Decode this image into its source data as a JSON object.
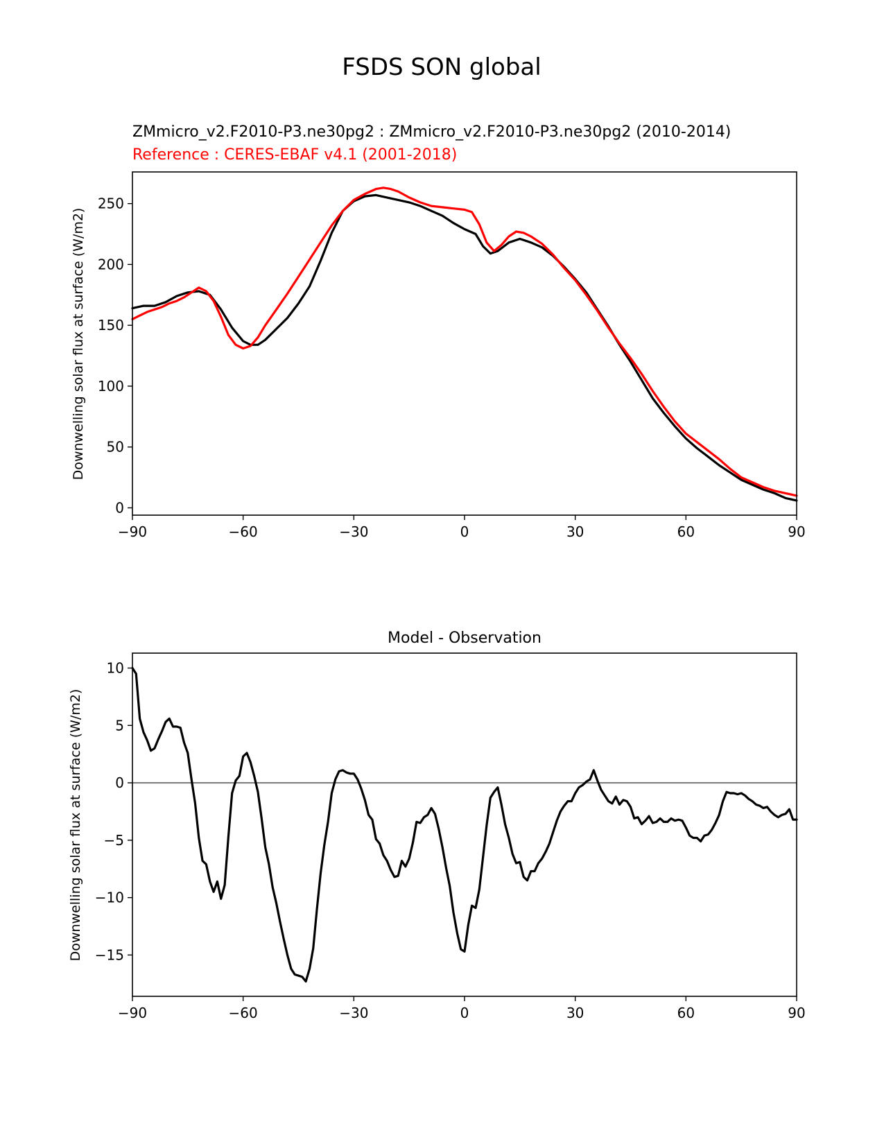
{
  "figure": {
    "title": "FSDS SON global"
  },
  "chart_data": [
    {
      "type": "line",
      "panel": "top",
      "title_lines": [
        {
          "text": "ZMmicro_v2.F2010-P3.ne30pg2 : ZMmicro_v2.F2010-P3.ne30pg2 (2010-2014)",
          "color": "#000000"
        },
        {
          "text": "Reference : CERES-EBAF v4.1 (2001-2018)",
          "color": "#ff0000"
        }
      ],
      "xlabel": "",
      "ylabel": "Downwelling solar flux at surface (W/m2)",
      "xlim": [
        -90,
        90
      ],
      "ylim": [
        -6,
        276
      ],
      "xticks": [
        -90,
        -60,
        -30,
        0,
        30,
        60,
        90
      ],
      "xtick_labels": [
        "−90",
        "−60",
        "−30",
        "0",
        "30",
        "60",
        "90"
      ],
      "yticks": [
        0,
        50,
        100,
        150,
        200,
        250
      ],
      "ytick_labels": [
        "0",
        "50",
        "100",
        "150",
        "200",
        "250"
      ],
      "grid": false,
      "series": [
        {
          "color": "#000000",
          "x": [
            -90,
            -87,
            -84,
            -81,
            -78,
            -75,
            -72,
            -69,
            -66,
            -63,
            -60,
            -58,
            -56,
            -54,
            -51,
            -48,
            -45,
            -42,
            -39,
            -36,
            -33,
            -30,
            -27,
            -24,
            -21,
            -18,
            -15,
            -12,
            -9,
            -6,
            -3,
            0,
            0,
            3,
            5,
            7,
            9,
            12,
            15,
            18,
            21,
            24,
            27,
            30,
            33,
            36,
            39,
            42,
            45,
            48,
            51,
            54,
            57,
            60,
            63,
            66,
            69,
            72,
            75,
            78,
            81,
            84,
            87,
            90
          ],
          "values": [
            164,
            166,
            166,
            169,
            174,
            177,
            178,
            175,
            163,
            148,
            137,
            134,
            134,
            138,
            147,
            156,
            168,
            182,
            203,
            226,
            244,
            252,
            256,
            257,
            255,
            253,
            251,
            248,
            244,
            240,
            234,
            229,
            229,
            225,
            215,
            209,
            211,
            218,
            221,
            218,
            214,
            207,
            198,
            188,
            177,
            163,
            149,
            134,
            120,
            105,
            90,
            78,
            67,
            57,
            49,
            42,
            35,
            29,
            23,
            19,
            15,
            12,
            8,
            6
          ]
        },
        {
          "color": "#ff0000",
          "x": [
            -90,
            -88,
            -86,
            -84,
            -82,
            -80,
            -78,
            -76,
            -74,
            -72,
            -70,
            -68,
            -66,
            -64,
            -62,
            -60,
            -58,
            -56,
            -54,
            -51,
            -48,
            -45,
            -42,
            -39,
            -36,
            -33,
            -30,
            -27,
            -24,
            -22,
            -20,
            -18,
            -15,
            -12,
            -9,
            -6,
            -3,
            0,
            2,
            4,
            6,
            8,
            10,
            12,
            14,
            16,
            18,
            21,
            24,
            27,
            30,
            33,
            36,
            39,
            42,
            45,
            48,
            51,
            54,
            57,
            60,
            63,
            66,
            69,
            72,
            75,
            78,
            81,
            84,
            87,
            90
          ],
          "values": [
            155,
            158,
            161,
            163,
            165,
            168,
            170,
            173,
            177,
            181,
            178,
            170,
            157,
            142,
            134,
            131,
            133,
            140,
            150,
            163,
            176,
            190,
            204,
            218,
            232,
            244,
            253,
            258,
            262,
            263,
            262,
            260,
            255,
            251,
            248,
            247,
            246,
            245,
            243,
            233,
            218,
            211,
            216,
            223,
            227,
            226,
            223,
            217,
            208,
            197,
            187,
            175,
            162,
            148,
            135,
            123,
            110,
            96,
            83,
            71,
            61,
            54,
            47,
            40,
            32,
            25,
            21,
            17,
            14,
            12,
            10
          ]
        }
      ]
    },
    {
      "type": "line",
      "panel": "bottom",
      "title": "Model - Observation",
      "xlabel": "",
      "ylabel": "Downwelling solar flux at surface (W/m2)",
      "xlim": [
        -90,
        90
      ],
      "ylim": [
        -18.6,
        11.3
      ],
      "xticks": [
        -90,
        -60,
        -30,
        0,
        30,
        60,
        90
      ],
      "xtick_labels": [
        "−90",
        "−60",
        "−30",
        "0",
        "30",
        "60",
        "90"
      ],
      "yticks": [
        -15,
        -10,
        -5,
        0,
        5,
        10
      ],
      "ytick_labels": [
        "−15",
        "−10",
        "−5",
        "0",
        "5",
        "10"
      ],
      "grid": false,
      "zero_line_color": "#808080",
      "series": [
        {
          "color": "#000000",
          "x": [
            -90,
            -89,
            -88,
            -87,
            -86,
            -85,
            -84,
            -83,
            -82,
            -81,
            -80,
            -79,
            -78,
            -77,
            -76,
            -75,
            -74,
            -73,
            -72,
            -71,
            -70,
            -69,
            -68,
            -67,
            -66,
            -65,
            -64,
            -63,
            -62,
            -61,
            -60,
            -59,
            -58,
            -57,
            -56,
            -55,
            -54,
            -53,
            -52,
            -51,
            -50,
            -49,
            -48,
            -47,
            -46,
            -45,
            -44,
            -43,
            -42,
            -41,
            -40,
            -39,
            -38,
            -37,
            -36,
            -35,
            -34,
            -33,
            -32,
            -31,
            -30,
            -29,
            -28,
            -27,
            -26,
            -25,
            -24,
            -23,
            -22,
            -21,
            -20,
            -19,
            -18,
            -17,
            -16,
            -15,
            -14,
            -13,
            -12,
            -11,
            -10,
            -9,
            -8,
            -7,
            -6,
            -5,
            -4,
            -3,
            -2,
            -1,
            0,
            1,
            2,
            3,
            4,
            5,
            6,
            7,
            8,
            9,
            10,
            11,
            12,
            13,
            14,
            15,
            16,
            17,
            18,
            19,
            20,
            21,
            22,
            23,
            24,
            25,
            26,
            27,
            28,
            29,
            30,
            31,
            32,
            33,
            34,
            35,
            36,
            37,
            38,
            39,
            40,
            41,
            42,
            43,
            44,
            45,
            46,
            47,
            48,
            49,
            50,
            51,
            52,
            53,
            54,
            55,
            56,
            57,
            58,
            59,
            60,
            61,
            62,
            63,
            64,
            65,
            66,
            67,
            68,
            69,
            70,
            71,
            72,
            73,
            74,
            75,
            76,
            77,
            78,
            79,
            80,
            81,
            82,
            83,
            84,
            85,
            86,
            87,
            88,
            89,
            90
          ],
          "values": [
            10,
            9.5,
            5.6,
            4.4,
            3.7,
            2.8,
            3.0,
            3.8,
            4.5,
            5.3,
            5.6,
            4.9,
            4.9,
            4.8,
            3.5,
            2.6,
            0.3,
            -1.8,
            -4.8,
            -6.8,
            -7.1,
            -8.6,
            -9.5,
            -8.6,
            -10.1,
            -8.9,
            -4.7,
            -0.9,
            0.2,
            0.6,
            2.3,
            2.6,
            1.8,
            0.6,
            -0.8,
            -3.1,
            -5.6,
            -7.1,
            -9.1,
            -10.5,
            -12.1,
            -13.6,
            -15.0,
            -16.2,
            -16.7,
            -16.8,
            -16.9,
            -17.3,
            -16.2,
            -14.4,
            -11.0,
            -7.9,
            -5.4,
            -3.4,
            -0.9,
            0.3,
            1.0,
            1.1,
            0.9,
            0.8,
            0.8,
            0.3,
            -0.5,
            -1.5,
            -2.8,
            -3.2,
            -4.9,
            -5.3,
            -6.3,
            -6.8,
            -7.6,
            -8.2,
            -8.1,
            -6.8,
            -7.3,
            -6.6,
            -5.2,
            -3.4,
            -3.5,
            -3.0,
            -2.8,
            -2.2,
            -2.7,
            -4.0,
            -5.6,
            -7.4,
            -9.0,
            -11.3,
            -13.1,
            -14.5,
            -14.7,
            -12.4,
            -10.7,
            -10.9,
            -9.3,
            -6.5,
            -3.7,
            -1.3,
            -0.8,
            -0.4,
            -1.9,
            -3.6,
            -4.8,
            -6.2,
            -7.0,
            -6.9,
            -8.2,
            -8.5,
            -7.7,
            -7.7,
            -7.0,
            -6.6,
            -6.0,
            -5.3,
            -4.3,
            -3.3,
            -2.5,
            -2.0,
            -1.6,
            -1.6,
            -0.9,
            -0.4,
            -0.2,
            0.1,
            0.3,
            1.1,
            0.2,
            -0.6,
            -1.1,
            -1.6,
            -1.8,
            -1.2,
            -1.9,
            -1.5,
            -1.6,
            -2.1,
            -3.1,
            -3.0,
            -3.6,
            -3.3,
            -2.9,
            -3.5,
            -3.4,
            -3.1,
            -3.4,
            -3.4,
            -3.1,
            -3.3,
            -3.2,
            -3.3,
            -3.9,
            -4.6,
            -4.8,
            -4.8,
            -5.1,
            -4.6,
            -4.5,
            -4.1,
            -3.5,
            -2.8,
            -1.6,
            -0.8,
            -0.9,
            -0.9,
            -1.0,
            -0.9,
            -1.1,
            -1.4,
            -1.6,
            -1.9,
            -2.0,
            -2.2,
            -2.1,
            -2.5,
            -2.8,
            -3.0,
            -2.8,
            -2.7,
            -2.3,
            -3.2,
            -3.2
          ]
        }
      ]
    }
  ]
}
